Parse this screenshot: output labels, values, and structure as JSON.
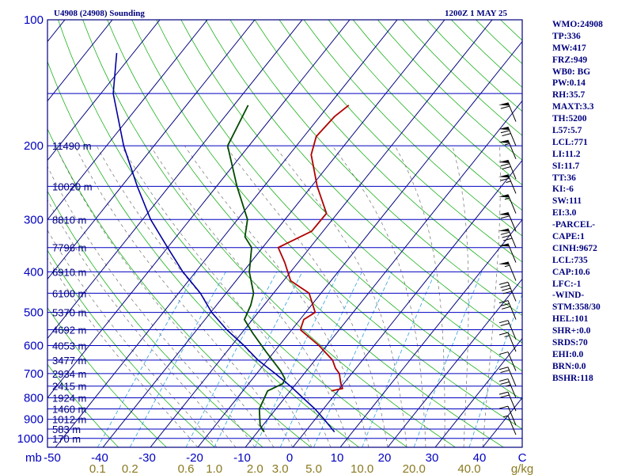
{
  "header": {
    "title": "U4908 (24908) Sounding",
    "time": "1200Z  1 MAY 25"
  },
  "side_panel": [
    "WMO:24908",
    "TP:336",
    "MW:417",
    "FRZ:949",
    "WB0: BG",
    "PW:0.14",
    "RH:35.7",
    "MAXT:3.3",
    "TH:5200",
    "L57:5.7",
    "LCL:771",
    "LI:11.2",
    "SI:11.7",
    "TT:36",
    "KI:-6",
    "SW:111",
    "EI:3.0",
    "-PARCEL-",
    "CAPE:1",
    "CINH:9672",
    "LCL:735",
    "CAP:10.6",
    "LFC:-1",
    "-WIND-",
    "STM:358/30",
    "HEL:101",
    "SHR+:0.0",
    "SRDS:70",
    "EHI:0.0",
    "BRN:0.0",
    "BSHR:118"
  ],
  "colors": {
    "frame": "#00007f",
    "isobar": "#0000c0",
    "isotherm": "#00007f",
    "dry_adiabat": "#00a800",
    "moist_adiabat": "#707070",
    "mixing_ratio": "#30a0e0",
    "temperature": "#b00000",
    "dewpoint": "#004800",
    "parcel": "#0000a0",
    "mixing_label": "#8a7a20"
  },
  "chart_data": {
    "type": "skew-t",
    "title": "U4908 (24908) Sounding",
    "ylabel": "mb",
    "xlabel": "C",
    "pressure_ticks": [
      100,
      200,
      300,
      400,
      500,
      600,
      700,
      800,
      900,
      1000
    ],
    "height_labels": [
      {
        "p": 200,
        "label": "11490 m"
      },
      {
        "p": 250,
        "label": "10020 m"
      },
      {
        "p": 300,
        "label": "8810 m"
      },
      {
        "p": 350,
        "label": "7796 m"
      },
      {
        "p": 400,
        "label": "6910 m"
      },
      {
        "p": 450,
        "label": "6100 m"
      },
      {
        "p": 500,
        "label": "5370 m"
      },
      {
        "p": 550,
        "label": "4692 m"
      },
      {
        "p": 600,
        "label": "4053 m"
      },
      {
        "p": 650,
        "label": "3477 m"
      },
      {
        "p": 700,
        "label": "2934 m"
      },
      {
        "p": 750,
        "label": "2415 m"
      },
      {
        "p": 800,
        "label": "1924 m"
      },
      {
        "p": 850,
        "label": "1460 m"
      },
      {
        "p": 900,
        "label": "1012 m"
      },
      {
        "p": 950,
        "label": "583 m"
      },
      {
        "p": 1000,
        "label": "170 m"
      }
    ],
    "temperature_ticks": [
      "-50",
      "-40",
      "-30",
      "-20",
      "-10",
      "0",
      "10",
      "20",
      "30",
      "40",
      "C"
    ],
    "temperature_tick_values": [
      -50,
      -40,
      -30,
      -20,
      -10,
      0,
      10,
      20,
      30,
      40
    ],
    "mixing_ratio_labels": [
      "0.1",
      "0.2",
      "0.6",
      "1.0",
      "2.0",
      "3.0",
      "5.0",
      "10.0",
      "20.0",
      "40.0",
      "g/kg"
    ],
    "mixing_ratio_values": [
      0.1,
      0.2,
      0.6,
      1.0,
      2.0,
      3.0,
      5.0,
      10.0,
      20.0,
      40.0
    ],
    "temperature_profile": [
      {
        "p": 160,
        "t": -45.8
      },
      {
        "p": 170,
        "t": -46.9
      },
      {
        "p": 190,
        "t": -47.4
      },
      {
        "p": 210,
        "t": -45.4
      },
      {
        "p": 250,
        "t": -38.8
      },
      {
        "p": 290,
        "t": -32.3
      },
      {
        "p": 320,
        "t": -32.4
      },
      {
        "p": 350,
        "t": -36.7
      },
      {
        "p": 380,
        "t": -32.8
      },
      {
        "p": 420,
        "t": -28.5
      },
      {
        "p": 450,
        "t": -22.5
      },
      {
        "p": 500,
        "t": -18.0
      },
      {
        "p": 520,
        "t": -19.2
      },
      {
        "p": 550,
        "t": -18.2
      },
      {
        "p": 600,
        "t": -11.6
      },
      {
        "p": 650,
        "t": -6.3
      },
      {
        "p": 680,
        "t": -4.3
      },
      {
        "p": 700,
        "t": -2.6
      },
      {
        "p": 740,
        "t": -0.6
      },
      {
        "p": 760,
        "t": 0.6
      },
      {
        "p": 770,
        "t": -1.4
      }
    ],
    "dewpoint_profile": [
      {
        "p": 160,
        "t": -67.0
      },
      {
        "p": 200,
        "t": -64.5
      },
      {
        "p": 250,
        "t": -55.7
      },
      {
        "p": 300,
        "t": -47.9
      },
      {
        "p": 330,
        "t": -45.5
      },
      {
        "p": 350,
        "t": -42.3
      },
      {
        "p": 400,
        "t": -38.7
      },
      {
        "p": 450,
        "t": -34.2
      },
      {
        "p": 480,
        "t": -32.8
      },
      {
        "p": 520,
        "t": -31.7
      },
      {
        "p": 560,
        "t": -27.7
      },
      {
        "p": 620,
        "t": -21.8
      },
      {
        "p": 690,
        "t": -15.4
      },
      {
        "p": 720,
        "t": -13.2
      },
      {
        "p": 740,
        "t": -12.8
      },
      {
        "p": 770,
        "t": -14.8
      },
      {
        "p": 850,
        "t": -13.5
      },
      {
        "p": 930,
        "t": -10.6
      },
      {
        "p": 965,
        "t": -8.6
      }
    ],
    "parcel_profile": [
      {
        "p": 120,
        "t": -103.5
      },
      {
        "p": 150,
        "t": -97.4
      },
      {
        "p": 200,
        "t": -86.4
      },
      {
        "p": 250,
        "t": -76.7
      },
      {
        "p": 300,
        "t": -68.3
      },
      {
        "p": 350,
        "t": -60.0
      },
      {
        "p": 400,
        "t": -52.7
      },
      {
        "p": 450,
        "t": -45.4
      },
      {
        "p": 500,
        "t": -39.8
      },
      {
        "p": 550,
        "t": -33.7
      },
      {
        "p": 600,
        "t": -27.4
      },
      {
        "p": 650,
        "t": -22.0
      },
      {
        "p": 700,
        "t": -16.1
      },
      {
        "p": 750,
        "t": -10.8
      },
      {
        "p": 800,
        "t": -6.2
      },
      {
        "p": 850,
        "t": -1.8
      },
      {
        "p": 900,
        "t": 1.9
      },
      {
        "p": 965,
        "t": 6.2
      }
    ],
    "wind_barbs_kt": [
      {
        "p": 175,
        "speed": 60
      },
      {
        "p": 200,
        "speed": 70
      },
      {
        "p": 215,
        "speed": 55
      },
      {
        "p": 240,
        "speed": 70
      },
      {
        "p": 260,
        "speed": 65
      },
      {
        "p": 290,
        "speed": 55
      },
      {
        "p": 320,
        "speed": 60
      },
      {
        "p": 350,
        "speed": 80
      },
      {
        "p": 380,
        "speed": 50
      },
      {
        "p": 420,
        "speed": 55
      },
      {
        "p": 470,
        "speed": 40
      },
      {
        "p": 520,
        "speed": 30
      },
      {
        "p": 580,
        "speed": 20
      },
      {
        "p": 620,
        "speed": 15
      },
      {
        "p": 690,
        "speed": 10
      },
      {
        "p": 750,
        "speed": 20
      },
      {
        "p": 800,
        "speed": 25
      },
      {
        "p": 860,
        "speed": 20
      },
      {
        "p": 930,
        "speed": 10
      },
      {
        "p": 980,
        "speed": 5
      }
    ]
  }
}
